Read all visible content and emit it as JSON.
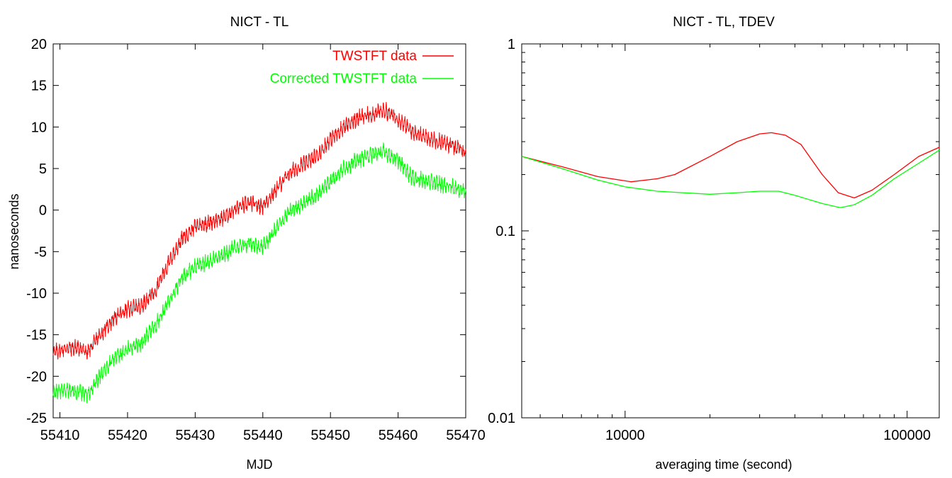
{
  "colors": {
    "red_series": "#ff0000",
    "green_series": "#00ff00",
    "axis": "#000000",
    "background": "#ffffff"
  },
  "chart_data": [
    {
      "type": "line",
      "title": "NICT - TL",
      "xlabel": "MJD",
      "ylabel": "nanoseconds",
      "xlim": [
        55409,
        55470
      ],
      "ylim": [
        -25,
        20
      ],
      "xticks": [
        55410,
        55420,
        55430,
        55440,
        55450,
        55460,
        55470
      ],
      "yticks": [
        -25,
        -20,
        -15,
        -10,
        -5,
        0,
        5,
        10,
        15,
        20
      ],
      "grid": false,
      "legend_position": "top-right",
      "series": [
        {
          "name": "TWSTFT data",
          "color": "#ff0000",
          "x": [
            55409,
            55411,
            55413,
            55414,
            55416,
            55418,
            55420,
            55422,
            55424,
            55426,
            55428,
            55430,
            55432,
            55434,
            55436,
            55438,
            55440,
            55442,
            55444,
            55446,
            55448,
            55450,
            55452,
            55454,
            55456,
            55458,
            55460,
            55462,
            55464,
            55466,
            55468,
            55470
          ],
          "values": [
            -17.2,
            -16.6,
            -16.6,
            -17.2,
            -15.0,
            -13.0,
            -12.0,
            -11.5,
            -9.8,
            -6.5,
            -3.5,
            -2.0,
            -1.5,
            -1.0,
            0.2,
            0.8,
            0.5,
            2.5,
            4.5,
            5.5,
            6.5,
            8.5,
            10.0,
            11.0,
            11.5,
            12.0,
            11.0,
            9.5,
            8.8,
            8.3,
            7.8,
            7.0
          ]
        },
        {
          "name": "Corrected TWSTFT data",
          "color": "#00ff00",
          "x": [
            55409,
            55411,
            55413,
            55414,
            55416,
            55418,
            55420,
            55422,
            55424,
            55426,
            55428,
            55430,
            55432,
            55434,
            55436,
            55438,
            55440,
            55442,
            55444,
            55446,
            55448,
            55450,
            55452,
            55454,
            55456,
            55458,
            55460,
            55462,
            55464,
            55466,
            55468,
            55470
          ],
          "values": [
            -22.0,
            -21.7,
            -21.8,
            -22.3,
            -20.0,
            -17.8,
            -16.8,
            -16.0,
            -14.0,
            -11.2,
            -8.2,
            -6.8,
            -6.2,
            -5.5,
            -4.5,
            -4.0,
            -4.5,
            -2.2,
            -0.2,
            0.8,
            1.8,
            3.5,
            5.0,
            6.0,
            6.7,
            7.0,
            6.0,
            4.0,
            3.5,
            3.2,
            2.8,
            2.3
          ]
        }
      ]
    },
    {
      "type": "line",
      "title": "NICT - TL, TDEV",
      "xlabel": "averaging time (second)",
      "ylabel": "",
      "xscale": "log",
      "yscale": "log",
      "xlim": [
        4300,
        130000
      ],
      "ylim": [
        0.01,
        1
      ],
      "xticks": [
        10000,
        100000
      ],
      "xtick_labels": [
        "10000",
        "100000"
      ],
      "yticks": [
        0.01,
        0.1,
        1
      ],
      "ytick_labels": [
        "0.01",
        "0.1",
        "1"
      ],
      "grid": false,
      "series": [
        {
          "color": "#ff0000",
          "x": [
            4300,
            6000,
            8000,
            10500,
            13000,
            15000,
            20000,
            25000,
            30000,
            33000,
            37000,
            42000,
            50000,
            57000,
            65000,
            75000,
            90000,
            110000,
            130000
          ],
          "values": [
            0.25,
            0.22,
            0.195,
            0.183,
            0.19,
            0.2,
            0.25,
            0.3,
            0.33,
            0.335,
            0.325,
            0.29,
            0.2,
            0.16,
            0.15,
            0.165,
            0.2,
            0.25,
            0.28
          ]
        },
        {
          "color": "#00ff00",
          "x": [
            4300,
            6000,
            8000,
            10000,
            13000,
            16000,
            20000,
            25000,
            30000,
            35000,
            40000,
            50000,
            58000,
            65000,
            75000,
            90000,
            110000,
            130000
          ],
          "values": [
            0.25,
            0.215,
            0.187,
            0.172,
            0.163,
            0.16,
            0.157,
            0.16,
            0.163,
            0.163,
            0.155,
            0.14,
            0.133,
            0.138,
            0.155,
            0.19,
            0.23,
            0.27
          ]
        }
      ]
    }
  ]
}
